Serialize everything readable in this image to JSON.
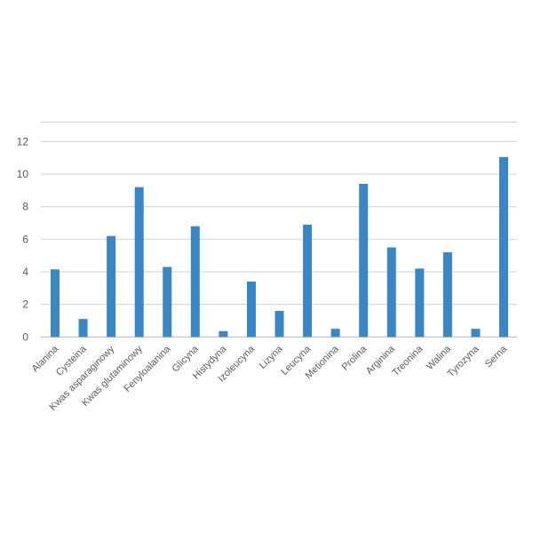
{
  "chart_data": {
    "type": "bar",
    "title": "",
    "xlabel": "",
    "ylabel": "",
    "categories": [
      "Alanina",
      "Cysteina",
      "Kwas asparaginowy",
      "Kwas glutaminowy",
      "Fenyloalanina",
      "Glicyna",
      "Histydyna",
      "Izoleucyna",
      "Lizyna",
      "Leucyna",
      "Metionina",
      "Prolina",
      "Arginina",
      "Treonina",
      "Walina",
      "Tyrozyna",
      "Serna"
    ],
    "values": [
      4.15,
      1.1,
      6.2,
      9.2,
      4.3,
      6.8,
      0.36,
      3.4,
      1.6,
      6.9,
      0.5,
      9.4,
      5.5,
      4.2,
      5.2,
      0.5,
      11.05
    ],
    "yticks": [
      "0",
      "2",
      "4",
      "6",
      "8",
      "10",
      "12"
    ],
    "ylim": [
      0,
      13.2
    ],
    "grid": true,
    "legend": "none",
    "bar_color": "#3a87c8"
  }
}
